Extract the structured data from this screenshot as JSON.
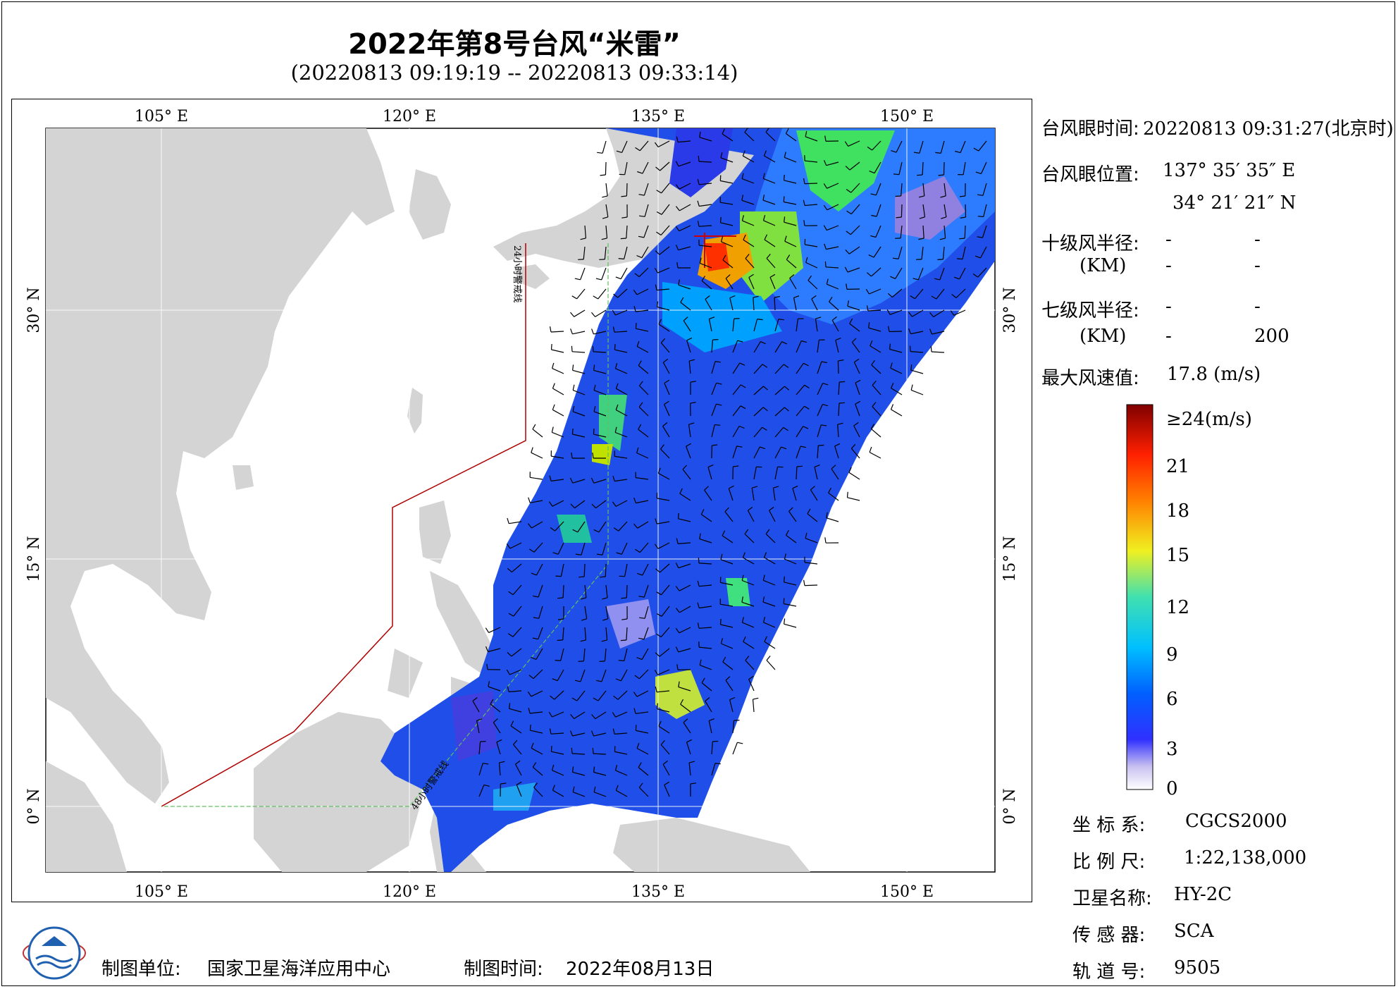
{
  "title": "2022年第8号台风“米雷”",
  "subtitle": "(20220813 09:19:19 -- 20220813 09:33:14)",
  "axes": {
    "lon_ticks": [
      "105° E",
      "120° E",
      "135° E",
      "150° E"
    ],
    "lat_ticks": [
      "30° N",
      "15° N",
      "0° N"
    ]
  },
  "map_labels": {
    "line_24h": "24小时警戒线",
    "line_48h": "48小时警戒线"
  },
  "info": {
    "eye_time_label": "台风眼时间:",
    "eye_time_value": "20220813 09:31:27(北京时)",
    "eye_pos_label": "台风眼位置:",
    "eye_lon": "137° 35′ 35″ E",
    "eye_lat": "34° 21′ 21″ N",
    "r10_label": "十级风半径:",
    "r10_unit": "(KM)",
    "r10_vals": [
      "-",
      "-",
      "-",
      "-"
    ],
    "r7_label": "七级风半径:",
    "r7_unit": "(KM)",
    "r7_vals": [
      "-",
      "-",
      "-",
      "200"
    ],
    "max_wind_label": "最大风速值:",
    "max_wind_value": "17.8 (m/s)"
  },
  "colorbar": {
    "labels": [
      "≥24(m/s)",
      "21",
      "18",
      "15",
      "12",
      "9",
      "6",
      "3",
      "0"
    ]
  },
  "meta": {
    "coord_label": "坐 标 系:",
    "coord_value": "CGCS2000",
    "scale_label": "比 例 尺:",
    "scale_value": "1:22,138,000",
    "sat_label": "卫星名称:",
    "sat_value": "HY-2C",
    "sensor_label": "传 感 器:",
    "sensor_value": "SCA",
    "orbit_label": "轨 道 号:",
    "orbit_value": "9505"
  },
  "footer": {
    "org_label": "制图单位:",
    "org_value": "国家卫星海洋应用中心",
    "date_label": "制图时间:",
    "date_value": "2022年08月13日"
  },
  "colors": {
    "land": "#d4d4d4",
    "warning_24h": "#b00000",
    "warning_48h": "#60c060"
  }
}
